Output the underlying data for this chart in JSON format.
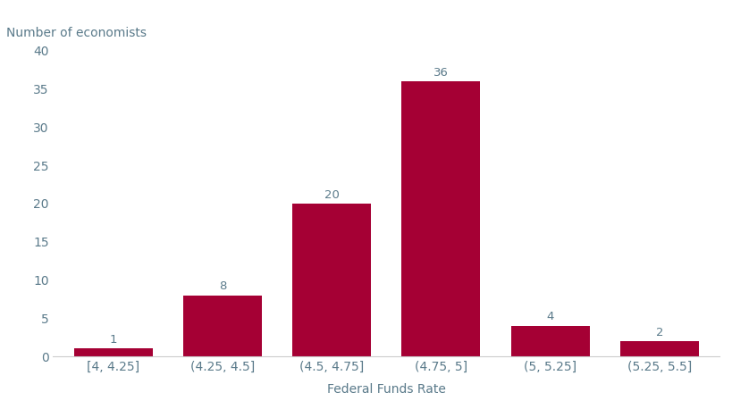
{
  "categories": [
    "[4, 4.25]",
    "(4.25, 4.5]",
    "(4.5, 4.75]",
    "(4.75, 5]",
    "(5, 5.25]",
    "(5.25, 5.5]"
  ],
  "values": [
    1,
    8,
    20,
    36,
    4,
    2
  ],
  "bar_color": "#A50034",
  "ylabel": "Number of economists",
  "xlabel": "Federal Funds Rate",
  "ylim": [
    0,
    40
  ],
  "yticks": [
    0,
    5,
    10,
    15,
    20,
    25,
    30,
    35,
    40
  ],
  "label_color": "#5a7a8a",
  "axis_color": "#5a7a8a",
  "background_color": "#ffffff",
  "label_fontsize": 9.5,
  "axis_label_fontsize": 10,
  "tick_label_fontsize": 10,
  "bar_width": 0.72
}
